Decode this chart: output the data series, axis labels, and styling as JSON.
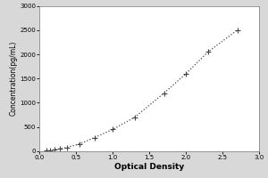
{
  "x": [
    0.1,
    0.15,
    0.2,
    0.28,
    0.38,
    0.55,
    0.75,
    1.0,
    1.3,
    1.7,
    2.0,
    2.3,
    2.7
  ],
  "y": [
    10,
    20,
    30,
    50,
    80,
    150,
    280,
    450,
    700,
    1200,
    1600,
    2050,
    2500
  ],
  "xlabel": "Optical Density",
  "ylabel": "Concentration(pg/mL)",
  "xlim": [
    0,
    3
  ],
  "ylim": [
    0,
    3000
  ],
  "xticks": [
    0,
    0.5,
    1,
    1.5,
    2,
    2.5,
    3
  ],
  "yticks": [
    0,
    500,
    1000,
    1500,
    2000,
    2500,
    3000
  ],
  "marker": "+",
  "marker_size": 4,
  "marker_linewidth": 0.8,
  "line_color": "#444444",
  "bg_color": "#d8d8d8",
  "plot_bg": "#ffffff",
  "xlabel_fontsize": 6.5,
  "ylabel_fontsize": 5.5,
  "tick_fontsize": 5.0,
  "xlabel_fontweight": "bold",
  "ylabel_fontweight": "normal",
  "border_color": "#888888"
}
